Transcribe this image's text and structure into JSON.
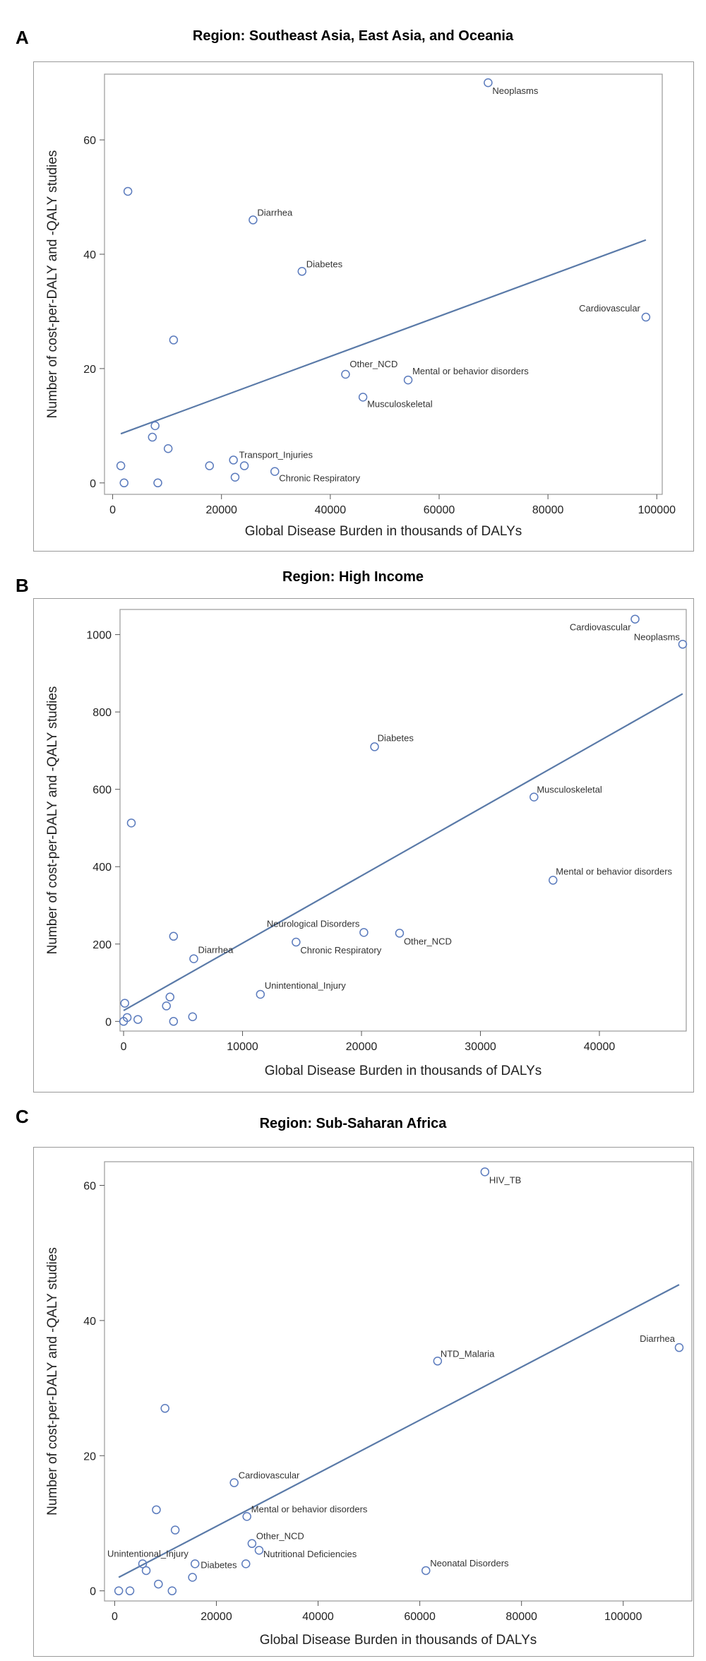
{
  "panels": [
    {
      "letter": "A",
      "title": "Region: Southeast Asia, East Asia, and Oceania"
    },
    {
      "letter": "B",
      "title": "Region: High Income"
    },
    {
      "letter": "C",
      "title": "Region: Sub-Saharan Africa"
    }
  ],
  "colors": {
    "marker": "#5b7bbd",
    "line": "#5a7aa8",
    "frame": "#9a9a9a"
  },
  "chart_data": [
    {
      "type": "scatter",
      "title": "Region: Southeast Asia, East Asia, and Oceania",
      "xlabel": "Global Disease Burden in thousands of DALYs",
      "ylabel": "Number of cost-per-DALY and -QALY studies",
      "xlim": [
        -1500,
        101000
      ],
      "ylim": [
        -2,
        71.5
      ],
      "xticks": [
        0,
        20000,
        40000,
        60000,
        80000,
        100000
      ],
      "yticks": [
        0,
        20,
        40,
        60
      ],
      "points": [
        {
          "x": 69000,
          "y": 70,
          "label": "Neoplasms"
        },
        {
          "x": 2800,
          "y": 51,
          "label": ""
        },
        {
          "x": 25800,
          "y": 46,
          "label": "Diarrhea"
        },
        {
          "x": 34800,
          "y": 37,
          "label": "Diabetes"
        },
        {
          "x": 11200,
          "y": 25,
          "label": ""
        },
        {
          "x": 98000,
          "y": 29,
          "label": "Cardiovascular"
        },
        {
          "x": 42800,
          "y": 19,
          "label": "Other_NCD"
        },
        {
          "x": 54300,
          "y": 18,
          "label": "Mental or behavior disorders"
        },
        {
          "x": 46000,
          "y": 15,
          "label": "Musculoskeletal"
        },
        {
          "x": 7800,
          "y": 10,
          "label": ""
        },
        {
          "x": 7300,
          "y": 8,
          "label": ""
        },
        {
          "x": 10200,
          "y": 6,
          "label": ""
        },
        {
          "x": 22200,
          "y": 4,
          "label": "Transport_Injuries"
        },
        {
          "x": 1500,
          "y": 3,
          "label": ""
        },
        {
          "x": 17800,
          "y": 3,
          "label": ""
        },
        {
          "x": 24200,
          "y": 3,
          "label": ""
        },
        {
          "x": 29800,
          "y": 2,
          "label": "Chronic Respiratory"
        },
        {
          "x": 22500,
          "y": 1,
          "label": ""
        },
        {
          "x": 2100,
          "y": 0,
          "label": ""
        },
        {
          "x": 8300,
          "y": 0,
          "label": ""
        }
      ],
      "fit_line": {
        "x": [
          1500,
          98000
        ],
        "y": [
          8.6,
          42.5
        ]
      }
    },
    {
      "type": "scatter",
      "title": "Region: High Income",
      "xlabel": "Global Disease Burden in thousands of DALYs",
      "ylabel": "Number of cost-per-DALY and -QALY studies",
      "xlim": [
        -300,
        47300
      ],
      "ylim": [
        -25,
        1065
      ],
      "xticks": [
        0,
        10000,
        20000,
        30000,
        40000
      ],
      "yticks": [
        0,
        200,
        400,
        600,
        800,
        1000
      ],
      "points": [
        {
          "x": 43000,
          "y": 1040,
          "label": "Cardiovascular"
        },
        {
          "x": 47000,
          "y": 975,
          "label": "Neoplasms"
        },
        {
          "x": 21100,
          "y": 710,
          "label": "Diabetes"
        },
        {
          "x": 34500,
          "y": 580,
          "label": "Musculoskeletal"
        },
        {
          "x": 650,
          "y": 513,
          "label": ""
        },
        {
          "x": 36100,
          "y": 365,
          "label": "Mental or behavior disorders"
        },
        {
          "x": 4200,
          "y": 220,
          "label": ""
        },
        {
          "x": 14500,
          "y": 205,
          "label": "Chronic Respiratory"
        },
        {
          "x": 20200,
          "y": 230,
          "label": "Neurological Disorders"
        },
        {
          "x": 23200,
          "y": 228,
          "label": "Other_NCD"
        },
        {
          "x": 5900,
          "y": 162,
          "label": "Diarrhea"
        },
        {
          "x": 11500,
          "y": 70,
          "label": "Unintentional_Injury"
        },
        {
          "x": 100,
          "y": 47,
          "label": ""
        },
        {
          "x": 3900,
          "y": 63,
          "label": ""
        },
        {
          "x": 3600,
          "y": 40,
          "label": ""
        },
        {
          "x": 5800,
          "y": 12,
          "label": ""
        },
        {
          "x": 300,
          "y": 10,
          "label": ""
        },
        {
          "x": 1200,
          "y": 5,
          "label": ""
        },
        {
          "x": 0,
          "y": 0,
          "label": ""
        },
        {
          "x": 4200,
          "y": 0,
          "label": ""
        }
      ],
      "fit_line": {
        "x": [
          0,
          47000
        ],
        "y": [
          28,
          847
        ]
      }
    },
    {
      "type": "scatter",
      "title": "Region: Sub-Saharan Africa",
      "xlabel": "Global Disease Burden in thousands of DALYs",
      "ylabel": "Number of cost-per-DALY and -QALY studies",
      "xlim": [
        -2000,
        113500
      ],
      "ylim": [
        -1.5,
        63.5
      ],
      "xticks": [
        0,
        20000,
        40000,
        60000,
        80000,
        100000
      ],
      "yticks": [
        0,
        20,
        40,
        60
      ],
      "points": [
        {
          "x": 72800,
          "y": 62,
          "label": "HIV_TB"
        },
        {
          "x": 111000,
          "y": 36,
          "label": "Diarrhea"
        },
        {
          "x": 63500,
          "y": 34,
          "label": "NTD_Malaria"
        },
        {
          "x": 9900,
          "y": 27,
          "label": ""
        },
        {
          "x": 23500,
          "y": 16,
          "label": "Cardiovascular"
        },
        {
          "x": 8200,
          "y": 12,
          "label": ""
        },
        {
          "x": 26000,
          "y": 11,
          "label": "Mental or behavior disorders"
        },
        {
          "x": 11900,
          "y": 9,
          "label": ""
        },
        {
          "x": 27000,
          "y": 7,
          "label": "Other_NCD"
        },
        {
          "x": 28400,
          "y": 6,
          "label": "Nutritional Deficiencies"
        },
        {
          "x": 5500,
          "y": 4,
          "label": "Unintentional_Injury"
        },
        {
          "x": 15800,
          "y": 4,
          "label": "Diabetes"
        },
        {
          "x": 25800,
          "y": 4,
          "label": ""
        },
        {
          "x": 6200,
          "y": 3,
          "label": ""
        },
        {
          "x": 61200,
          "y": 3,
          "label": "Neonatal Disorders"
        },
        {
          "x": 15300,
          "y": 2,
          "label": ""
        },
        {
          "x": 8600,
          "y": 1,
          "label": ""
        },
        {
          "x": 800,
          "y": 0,
          "label": ""
        },
        {
          "x": 3000,
          "y": 0,
          "label": ""
        },
        {
          "x": 11300,
          "y": 0,
          "label": ""
        }
      ],
      "fit_line": {
        "x": [
          800,
          111000
        ],
        "y": [
          2,
          45.3
        ]
      }
    }
  ]
}
